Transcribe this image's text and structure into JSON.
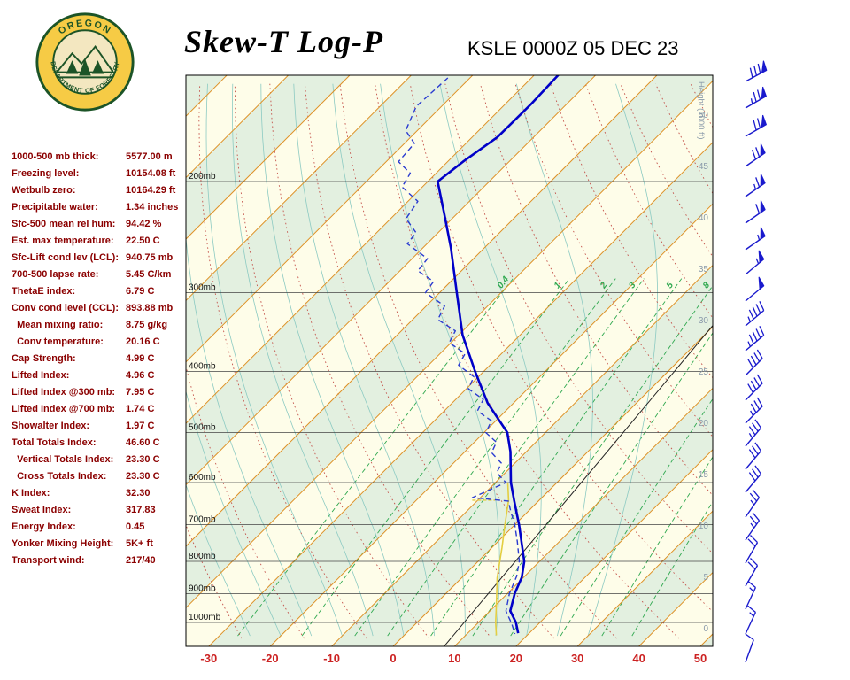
{
  "header": {
    "title": "Skew-T Log-P",
    "station": "KSLE 0000Z 05 DEC 23",
    "logo_top": "OREGON",
    "logo_bottom": "DEPARTMENT OF FORESTRY"
  },
  "indices": [
    {
      "label": "1000-500 mb thick:",
      "value": "5577.00 m"
    },
    {
      "label": "Freezing level:",
      "value": "10154.08 ft"
    },
    {
      "label": "Wetbulb zero:",
      "value": "10164.29 ft"
    },
    {
      "label": "Precipitable water:",
      "value": "1.34 inches"
    },
    {
      "label": "Sfc-500 mean rel hum:",
      "value": "94.42 %"
    },
    {
      "label": "Est. max temperature:",
      "value": "22.50 C"
    },
    {
      "label": "Sfc-Lift cond lev (LCL):",
      "value": "940.75 mb"
    },
    {
      "label": "700-500 lapse rate:",
      "value": "5.45 C/km"
    },
    {
      "label": "ThetaE index:",
      "value": "6.79 C"
    },
    {
      "label": "Conv cond level (CCL):",
      "value": "893.88 mb"
    },
    {
      "label": "  Mean mixing ratio:",
      "value": "8.75 g/kg"
    },
    {
      "label": "  Conv temperature:",
      "value": "20.16 C"
    },
    {
      "label": "Cap Strength:",
      "value": "4.99 C"
    },
    {
      "label": "Lifted Index:",
      "value": "4.96 C"
    },
    {
      "label": "Lifted Index @300 mb:",
      "value": "7.95 C"
    },
    {
      "label": "Lifted Index @700 mb:",
      "value": "1.74 C"
    },
    {
      "label": "Showalter Index:",
      "value": "1.97 C"
    },
    {
      "label": "Total Totals Index:",
      "value": "46.60 C"
    },
    {
      "label": "  Vertical Totals Index:",
      "value": "23.30 C"
    },
    {
      "label": "  Cross Totals Index:",
      "value": "23.30 C"
    },
    {
      "label": "K Index:",
      "value": "32.30"
    },
    {
      "label": "Sweat Index:",
      "value": "317.83"
    },
    {
      "label": "Energy Index:",
      "value": "0.45"
    },
    {
      "label": "Yonker Mixing Height:",
      "value": "5K+ ft"
    },
    {
      "label": "Transport wind:",
      "value": "217/40"
    }
  ],
  "chart_data": {
    "type": "skewt",
    "title": "Skew-T Log-P",
    "station": "KSLE 0000Z 05 DEC 23",
    "pressure_axis_mb": [
      200,
      300,
      400,
      500,
      600,
      700,
      800,
      900,
      1000
    ],
    "pressure_label_suffix": "mb",
    "temp_axis_c": [
      -30,
      -20,
      -10,
      0,
      10,
      20,
      30,
      40,
      50
    ],
    "temp_range_c": [
      -30,
      50
    ],
    "height_axis_kft": [
      0,
      5,
      10,
      15,
      20,
      25,
      30,
      35,
      40,
      45,
      50
    ],
    "height_axis_title": "Height (1000 ft)",
    "grid": {
      "isotherm_step_c": 10,
      "dry_adiabat_step_c": 10,
      "moist_adiabat_step_c": 5
    },
    "mixing_ratio_labels": [
      "0.4",
      "1",
      "2",
      "3",
      "5",
      "8"
    ],
    "mixing_ratio_lines_gkg": [
      0.4,
      1,
      2,
      3,
      5,
      8,
      12,
      20,
      30,
      40
    ],
    "temperature_profile": [
      [
        135,
        -66.1
      ],
      [
        151,
        -65.8
      ],
      [
        170,
        -65.9
      ],
      [
        186,
        -67.5
      ],
      [
        200,
        -68.4
      ],
      [
        224,
        -62.3
      ],
      [
        255,
        -55.4
      ],
      [
        300,
        -47.2
      ],
      [
        350,
        -39.4
      ],
      [
        400,
        -31.4
      ],
      [
        449,
        -24.2
      ],
      [
        500,
        -16.2
      ],
      [
        536,
        -12.6
      ],
      [
        600,
        -7.5
      ],
      [
        640,
        -4.1
      ],
      [
        700,
        0.7
      ],
      [
        800,
        7.5
      ],
      [
        848,
        9.7
      ],
      [
        900,
        11.2
      ],
      [
        959,
        13.3
      ],
      [
        1000,
        16.1
      ],
      [
        1040,
        18.2
      ]
    ],
    "dewpoint_profile": [
      [
        137,
        -83.6
      ],
      [
        152,
        -84.1
      ],
      [
        166,
        -81.9
      ],
      [
        174,
        -78.4
      ],
      [
        186,
        -78.0
      ],
      [
        194,
        -74.2
      ],
      [
        204,
        -73.3
      ],
      [
        215,
        -68.4
      ],
      [
        229,
        -67.5
      ],
      [
        241,
        -63.6
      ],
      [
        251,
        -63.2
      ],
      [
        265,
        -57.5
      ],
      [
        277,
        -57.1
      ],
      [
        288,
        -52.8
      ],
      [
        300,
        -52.3
      ],
      [
        315,
        -47.0
      ],
      [
        331,
        -45.9
      ],
      [
        345,
        -41.2
      ],
      [
        360,
        -40.3
      ],
      [
        375,
        -35.9
      ],
      [
        391,
        -35.1
      ],
      [
        408,
        -30.7
      ],
      [
        426,
        -29.7
      ],
      [
        443,
        -25.5
      ],
      [
        462,
        -24.6
      ],
      [
        479,
        -20.7
      ],
      [
        500,
        -19.7
      ],
      [
        518,
        -16.4
      ],
      [
        538,
        -15.5
      ],
      [
        559,
        -12.2
      ],
      [
        579,
        -11.4
      ],
      [
        600,
        -8.3
      ],
      [
        634,
        -11.3
      ],
      [
        642,
        -4.9
      ],
      [
        667,
        -2.8
      ],
      [
        700,
        0.0
      ],
      [
        745,
        3.2
      ],
      [
        800,
        6.7
      ],
      [
        845,
        8.7
      ],
      [
        899,
        10.3
      ],
      [
        959,
        12.6
      ],
      [
        1006,
        15.7
      ],
      [
        1043,
        17.8
      ]
    ],
    "parcel_profile": [
      [
        1048,
        15.0
      ],
      [
        1000,
        12.8
      ],
      [
        941,
        10.2
      ],
      [
        850,
        5.8
      ],
      [
        760,
        1.6
      ],
      [
        700,
        -1.6
      ],
      [
        640,
        -5.0
      ],
      [
        600,
        -8.0
      ]
    ],
    "marker_segment": [
      [
        640,
        -10.9
      ],
      [
        640,
        -7.2
      ]
    ],
    "reference_line": [
      [
        333,
        -0.3
      ],
      [
        1091,
        8.3
      ]
    ],
    "wind_barbs": [
      [
        748,
        200,
        10
      ],
      [
        716,
        205,
        15
      ],
      [
        688,
        205,
        15
      ],
      [
        662,
        210,
        20
      ],
      [
        636,
        210,
        20
      ],
      [
        610,
        215,
        25
      ],
      [
        584,
        215,
        25
      ],
      [
        556,
        220,
        30
      ],
      [
        530,
        220,
        30
      ],
      [
        504,
        220,
        35
      ],
      [
        478,
        225,
        35
      ],
      [
        452,
        225,
        40
      ],
      [
        424,
        225,
        40
      ],
      [
        396,
        230,
        45
      ],
      [
        368,
        230,
        45
      ],
      [
        340,
        230,
        50
      ],
      [
        310,
        230,
        55
      ],
      [
        282,
        235,
        55
      ],
      [
        252,
        235,
        60
      ],
      [
        222,
        235,
        65
      ],
      [
        188,
        235,
        70
      ],
      [
        154,
        240,
        70
      ],
      [
        122,
        240,
        75
      ],
      [
        92,
        242,
        80
      ]
    ],
    "colors": {
      "plot_bg": "#FEFDE9",
      "band_green": "#E3F0E0",
      "isotherm": "#DE9126",
      "dry_adiabat": "#C4524A",
      "mixing_ratio": "#2FA84F",
      "moist_adiabat": "#8CCAC2",
      "isobar": "#444444",
      "temperature": "#0000C8",
      "dewpoint": "#2A3BD0",
      "parcel": "#E3CE41",
      "wind": "#1A1ACD",
      "axis_red": "#CC2222",
      "height_label": "#8A9AAA",
      "reference": "#222222",
      "stats_text": "#8B0000",
      "logo_gold": "#F6CB45",
      "logo_green": "#1C5427"
    }
  }
}
